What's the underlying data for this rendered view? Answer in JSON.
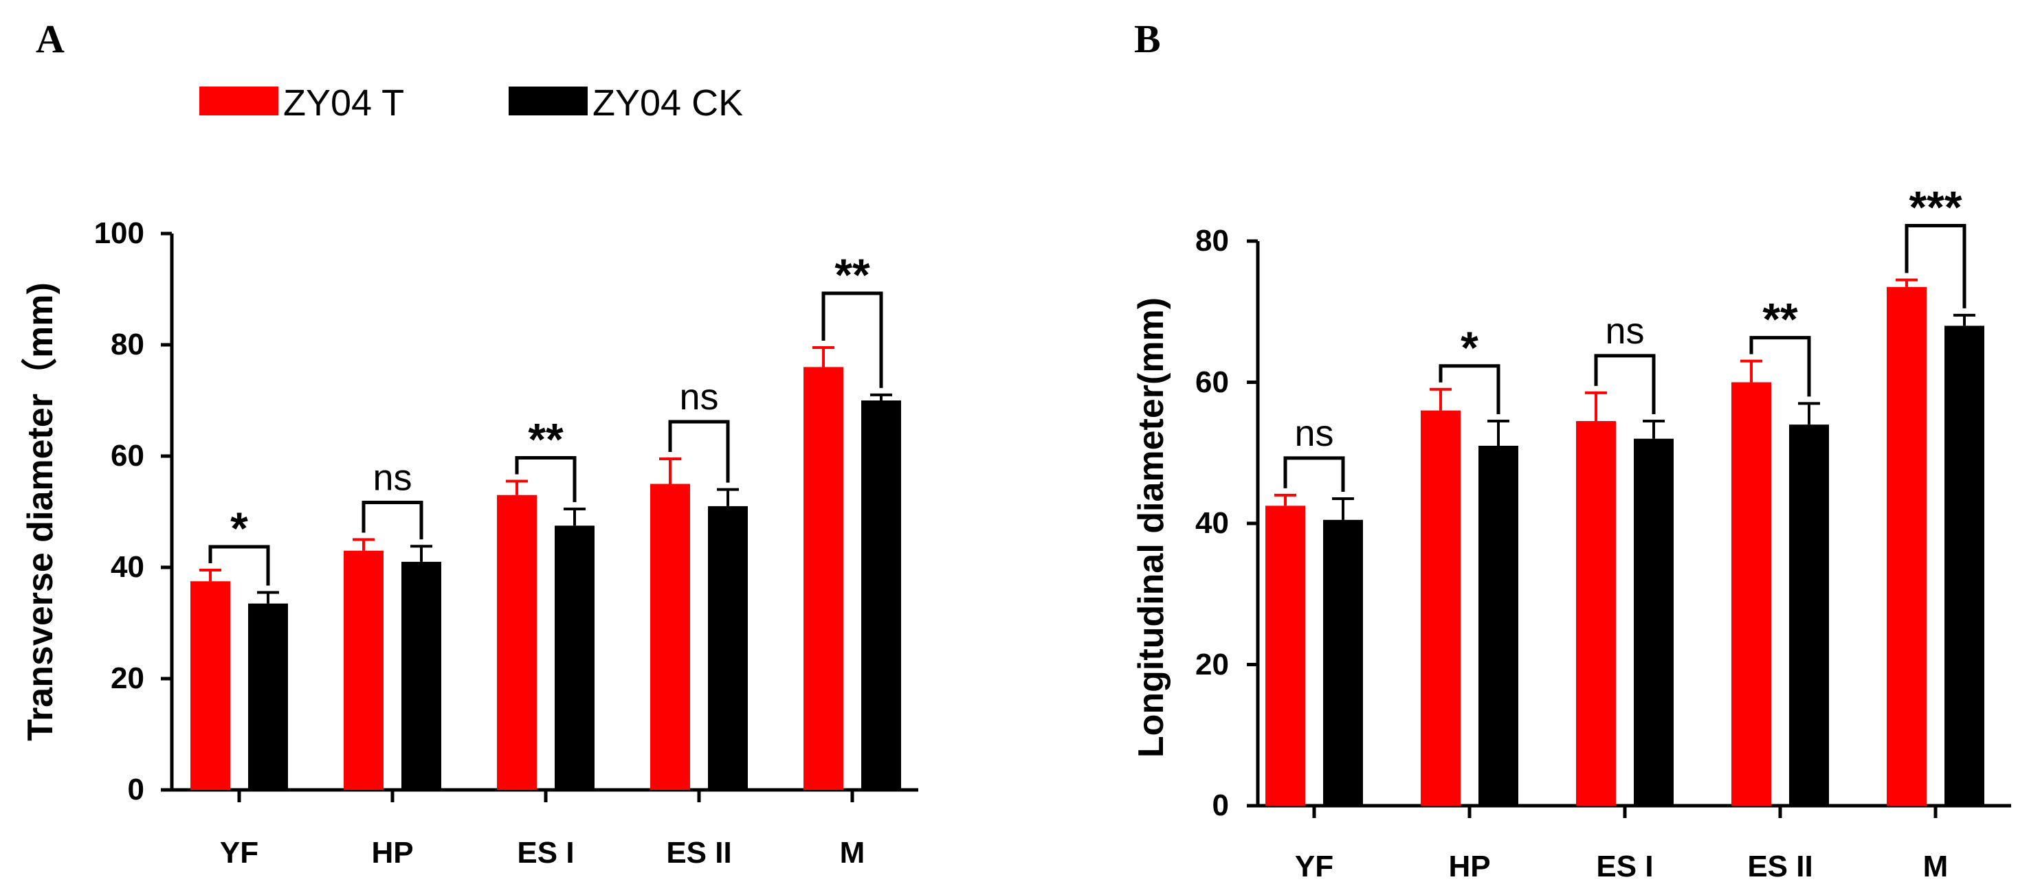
{
  "colors": {
    "treatment": "#ff0000",
    "control": "#000000",
    "axis": "#000000"
  },
  "legend": [
    {
      "name": "ZY04 T",
      "color": "#ff0000"
    },
    {
      "name": "ZY04 CK",
      "color": "#000000"
    }
  ],
  "chart_data": [
    {
      "panel": "A",
      "type": "bar",
      "ylabel": "Transverse diameter（mm)",
      "xlabel": "",
      "ylim": [
        0,
        100
      ],
      "yticks": [
        "0",
        "20",
        "40",
        "60",
        "80",
        "100"
      ],
      "categories": [
        "YF",
        "HP",
        "ES I",
        "ES II",
        "M"
      ],
      "series": [
        {
          "name": "ZY04 T",
          "values": [
            37.5,
            43.0,
            53.0,
            55.0,
            76.0
          ],
          "errors": [
            2.0,
            2.0,
            2.5,
            4.5,
            3.5
          ]
        },
        {
          "name": "ZY04 CK",
          "values": [
            33.5,
            41.0,
            47.5,
            51.0,
            70.0
          ],
          "errors": [
            2.0,
            2.8,
            3.0,
            3.0,
            1.0
          ]
        }
      ],
      "significance": [
        "*",
        "ns",
        "**",
        "ns",
        "**"
      ]
    },
    {
      "panel": "B",
      "type": "bar",
      "ylabel": "Longitudinal diameter(mm)",
      "xlabel": "",
      "ylim": [
        0,
        80
      ],
      "yticks": [
        "0",
        "20",
        "40",
        "60",
        "80"
      ],
      "categories": [
        "YF",
        "HP",
        "ES I",
        "ES II",
        "M"
      ],
      "series": [
        {
          "name": "ZY04 T",
          "values": [
            42.5,
            56.0,
            54.5,
            60.0,
            73.5
          ],
          "errors": [
            1.5,
            3.0,
            4.0,
            3.0,
            1.0
          ]
        },
        {
          "name": "ZY04 CK",
          "values": [
            40.5,
            51.0,
            52.0,
            54.0,
            68.0
          ],
          "errors": [
            3.0,
            3.5,
            2.5,
            3.0,
            1.5
          ]
        }
      ],
      "significance": [
        "ns",
        "*",
        "ns",
        "**",
        "***"
      ]
    }
  ]
}
